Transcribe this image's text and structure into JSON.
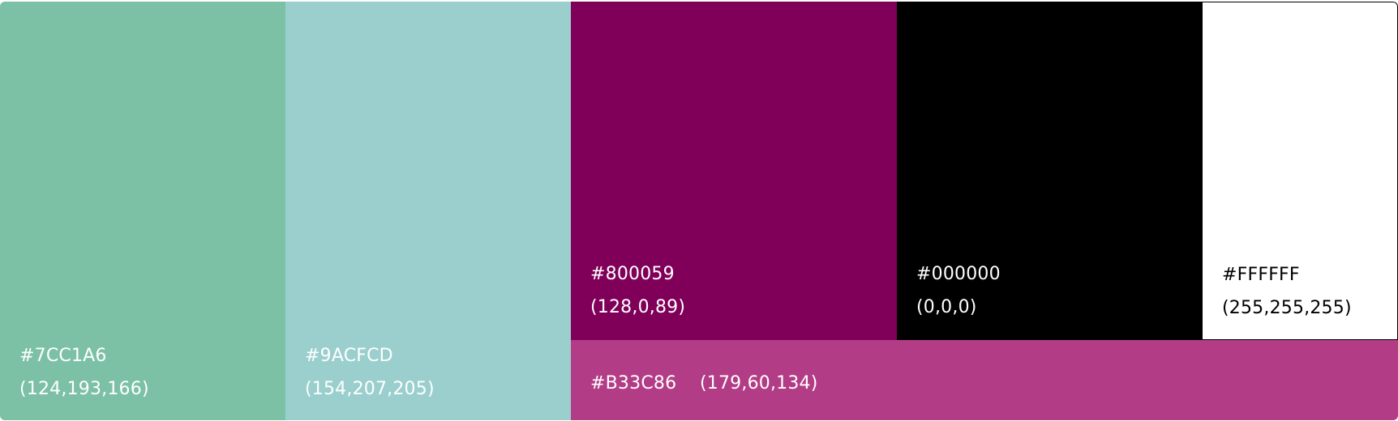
{
  "swatches": [
    {
      "id": "7CC1A6",
      "hex": "#7CC1A6",
      "rgb": "(124,193,166)",
      "color": "#7CC1A6",
      "text_color": "#FFFFFF"
    },
    {
      "id": "9ACFCD",
      "hex": "#9ACFCD",
      "rgb": "(154,207,205)",
      "color": "#9ACFCD",
      "text_color": "#FFFFFF"
    },
    {
      "id": "800059",
      "hex": "#800059",
      "rgb": "(128,0,89)",
      "color": "#800059",
      "text_color": "#FFFFFF"
    },
    {
      "id": "000000",
      "hex": "#000000",
      "rgb": "(0,0,0)",
      "color": "#000000",
      "text_color": "#FFFFFF"
    },
    {
      "id": "FFFFFF",
      "hex": "#FFFFFF",
      "rgb": "(255,255,255)",
      "color": "#FFFFFF",
      "text_color": "#000000"
    },
    {
      "id": "B33C86",
      "hex": "#B33C86",
      "rgb": "(179,60,134)",
      "color": "#B33C86",
      "text_color": "#FFFFFF"
    }
  ]
}
